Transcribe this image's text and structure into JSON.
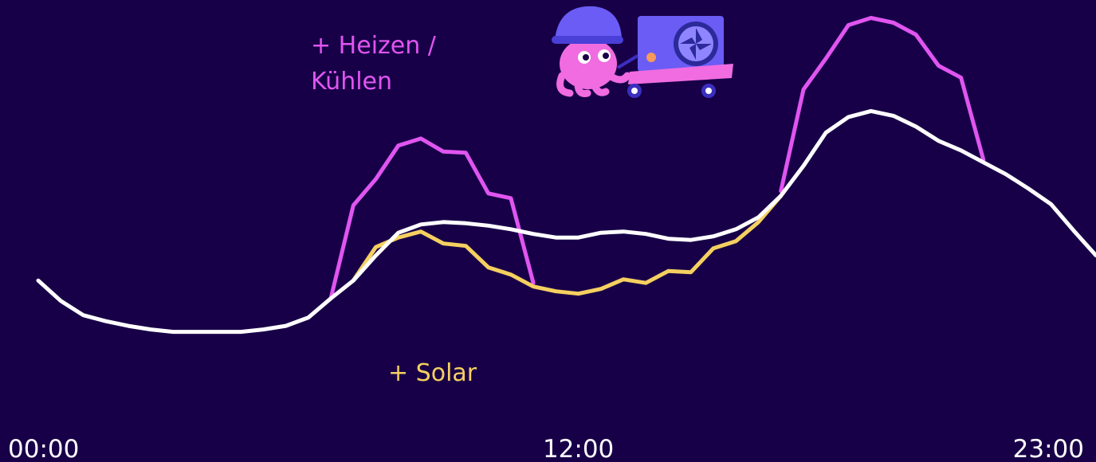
{
  "chart_data": {
    "type": "line",
    "annotations": [
      "+ Heizen /",
      "Kühlen",
      "+ Solar"
    ],
    "x": [
      0,
      0.5,
      1,
      1.5,
      2,
      2.5,
      3,
      3.5,
      4,
      4.5,
      5,
      5.5,
      6,
      6.5,
      7,
      7.5,
      8,
      8.5,
      9,
      9.5,
      10,
      10.5,
      11,
      11.5,
      12,
      12.5,
      13,
      13.5,
      14,
      14.5,
      15,
      15.5,
      16,
      16.5,
      17,
      17.5,
      18,
      18.5,
      19,
      19.5,
      20,
      20.5,
      21,
      21.5,
      22,
      22.5,
      23,
      23.5
    ],
    "xlim": [
      0,
      23.5
    ],
    "xticks": [
      {
        "value": 0,
        "label": "00:00"
      },
      {
        "value": 12,
        "label": "12:00"
      },
      {
        "value": 23,
        "label": "23:00"
      }
    ],
    "ylim": [
      -0.4,
      3.47
    ],
    "series": [
      {
        "color": "#e055f0",
        "values": [
          null,
          null,
          null,
          null,
          null,
          null,
          null,
          null,
          null,
          null,
          null,
          null,
          null,
          0.97,
          1.75,
          1.97,
          2.25,
          2.31,
          2.2,
          2.19,
          1.85,
          1.81,
          1.1,
          null,
          null,
          null,
          null,
          null,
          null,
          null,
          null,
          null,
          null,
          1.87,
          2.72,
          2.98,
          3.26,
          3.32,
          3.28,
          3.18,
          2.92,
          2.82,
          2.13,
          null,
          null,
          null,
          null,
          null
        ]
      },
      {
        "color": "#f5d060",
        "values": [
          null,
          null,
          null,
          null,
          null,
          null,
          null,
          null,
          null,
          null,
          null,
          null,
          null,
          null,
          1.12,
          1.4,
          1.48,
          1.53,
          1.43,
          1.41,
          1.23,
          1.17,
          1.07,
          1.03,
          1.01,
          1.05,
          1.13,
          1.1,
          1.2,
          1.19,
          1.39,
          1.45,
          1.61,
          1.83,
          null,
          null,
          null,
          null,
          null,
          null,
          null,
          null,
          null,
          null,
          null,
          null,
          null,
          null
        ]
      },
      {
        "color": "#ffffff",
        "values": [
          1.12,
          0.95,
          0.83,
          0.78,
          0.74,
          0.71,
          0.69,
          0.69,
          0.69,
          0.69,
          0.71,
          0.74,
          0.81,
          0.97,
          1.12,
          1.33,
          1.52,
          1.59,
          1.61,
          1.6,
          1.58,
          1.55,
          1.51,
          1.48,
          1.48,
          1.52,
          1.53,
          1.51,
          1.47,
          1.46,
          1.49,
          1.55,
          1.65,
          1.83,
          2.08,
          2.36,
          2.49,
          2.54,
          2.5,
          2.41,
          2.29,
          2.21,
          2.11,
          2.01,
          1.89,
          1.76,
          1.54,
          1.33
        ]
      }
    ]
  }
}
